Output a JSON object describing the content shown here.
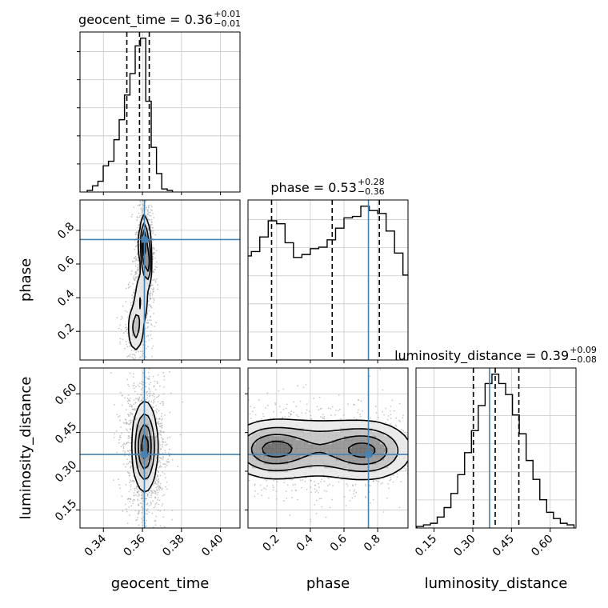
{
  "chart_data": {
    "type": "corner",
    "parameters": [
      "geocent_time",
      "phase",
      "luminosity_distance"
    ],
    "truth": {
      "geocent_time": 0.361,
      "phase": 0.745,
      "luminosity_distance": 0.365
    },
    "truth_color": "#4682b4",
    "hist_color": "#000000",
    "grid": true,
    "titles": [
      {
        "parameter": "geocent_time",
        "prefix": "geocent_time = 0.36",
        "upper": "+0.01",
        "lower": "−0.01"
      },
      {
        "parameter": "phase",
        "prefix": "phase = 0.53",
        "upper": "+0.28",
        "lower": "−0.36"
      },
      {
        "parameter": "luminosity_distance",
        "prefix": "luminosity_distance = 0.39",
        "upper": "+0.09",
        "lower": "−0.08"
      }
    ],
    "axes": {
      "geocent_time": {
        "range": [
          0.328,
          0.41
        ],
        "ticks": [
          0.34,
          0.36,
          0.38,
          0.4
        ],
        "tick_labels": [
          "0.34",
          "0.36",
          "0.38",
          "0.40"
        ]
      },
      "phase": {
        "range": [
          0.03,
          0.98
        ],
        "ticks": [
          0.2,
          0.4,
          0.6,
          0.8
        ],
        "tick_labels": [
          "0.2",
          "0.4",
          "0.6",
          "0.8"
        ]
      },
      "luminosity_distance": {
        "range": [
          0.08,
          0.7
        ],
        "ticks": [
          0.15,
          0.3,
          0.45,
          0.6
        ],
        "tick_labels": [
          "0.15",
          "0.30",
          "0.45",
          "0.60"
        ]
      }
    },
    "histograms": {
      "geocent_time": {
        "edges": [
          0.3317,
          0.3344,
          0.3372,
          0.3399,
          0.3426,
          0.3454,
          0.3481,
          0.3508,
          0.3536,
          0.3563,
          0.359,
          0.3617,
          0.3645,
          0.3672,
          0.3699,
          0.3727,
          0.3754
        ],
        "counts": [
          0.01,
          0.04,
          0.07,
          0.17,
          0.2,
          0.34,
          0.47,
          0.63,
          0.77,
          0.95,
          1.0,
          0.59,
          0.29,
          0.12,
          0.02,
          0.01
        ],
        "quantiles": [
          0.352,
          0.3585,
          0.3635
        ]
      },
      "phase": {
        "edges": [
          0.0,
          0.05,
          0.1,
          0.15,
          0.2,
          0.25,
          0.3,
          0.35,
          0.4,
          0.45,
          0.5,
          0.55,
          0.6,
          0.65,
          0.7,
          0.75,
          0.8,
          0.85,
          0.9,
          0.95,
          1.0
        ],
        "counts": [
          0.71,
          0.74,
          0.84,
          0.95,
          0.93,
          0.8,
          0.7,
          0.72,
          0.76,
          0.77,
          0.82,
          0.9,
          0.97,
          0.98,
          1.05,
          1.02,
          1.0,
          0.88,
          0.73,
          0.58
        ],
        "quantiles": [
          0.17,
          0.53,
          0.81
        ]
      },
      "luminosity_distance": {
        "edges": [
          0.0828,
          0.1093,
          0.1358,
          0.1623,
          0.1888,
          0.2153,
          0.2418,
          0.2683,
          0.2948,
          0.3213,
          0.3478,
          0.3743,
          0.4008,
          0.4273,
          0.4538,
          0.4803,
          0.5068,
          0.5333,
          0.5598,
          0.5863,
          0.6128,
          0.6393,
          0.6658,
          0.6923
        ],
        "counts": [
          0.01,
          0.02,
          0.03,
          0.07,
          0.13,
          0.22,
          0.34,
          0.48,
          0.62,
          0.78,
          0.92,
          0.98,
          0.92,
          0.85,
          0.72,
          0.6,
          0.43,
          0.31,
          0.18,
          0.1,
          0.06,
          0.03,
          0.02
        ],
        "quantiles": [
          0.3025,
          0.387,
          0.4785
        ]
      }
    },
    "contours": {
      "phase_vs_geocent_time": {
        "x": "geocent_time",
        "y": "phase",
        "modes": [
          {
            "cx": 0.361,
            "cy": 0.72,
            "sx": 0.0013,
            "sy": 0.085,
            "w": 1.0
          },
          {
            "cx": 0.3625,
            "cy": 0.6,
            "sx": 0.0012,
            "sy": 0.07,
            "w": 0.7
          },
          {
            "cx": 0.3565,
            "cy": 0.22,
            "sx": 0.0022,
            "sy": 0.08,
            "w": 0.45
          },
          {
            "cx": 0.3595,
            "cy": 0.4,
            "sx": 0.002,
            "sy": 0.09,
            "w": 0.35
          }
        ]
      },
      "luminosity_distance_vs_geocent_time": {
        "x": "geocent_time",
        "y": "luminosity_distance",
        "modes": [
          {
            "cx": 0.3612,
            "cy": 0.395,
            "sx": 0.0032,
            "sy": 0.085,
            "w": 1.0
          }
        ]
      },
      "luminosity_distance_vs_phase": {
        "x": "phase",
        "y": "luminosity_distance",
        "modes": [
          {
            "cx": 0.17,
            "cy": 0.385,
            "sx": 0.13,
            "sy": 0.055,
            "w": 1.0
          },
          {
            "cx": 0.74,
            "cy": 0.38,
            "sx": 0.13,
            "sy": 0.055,
            "w": 0.95
          },
          {
            "cx": 0.46,
            "cy": 0.39,
            "sx": 0.18,
            "sy": 0.06,
            "w": 0.55
          }
        ]
      }
    },
    "contour_levels": [
      0.12,
      0.33,
      0.6,
      0.86
    ]
  }
}
